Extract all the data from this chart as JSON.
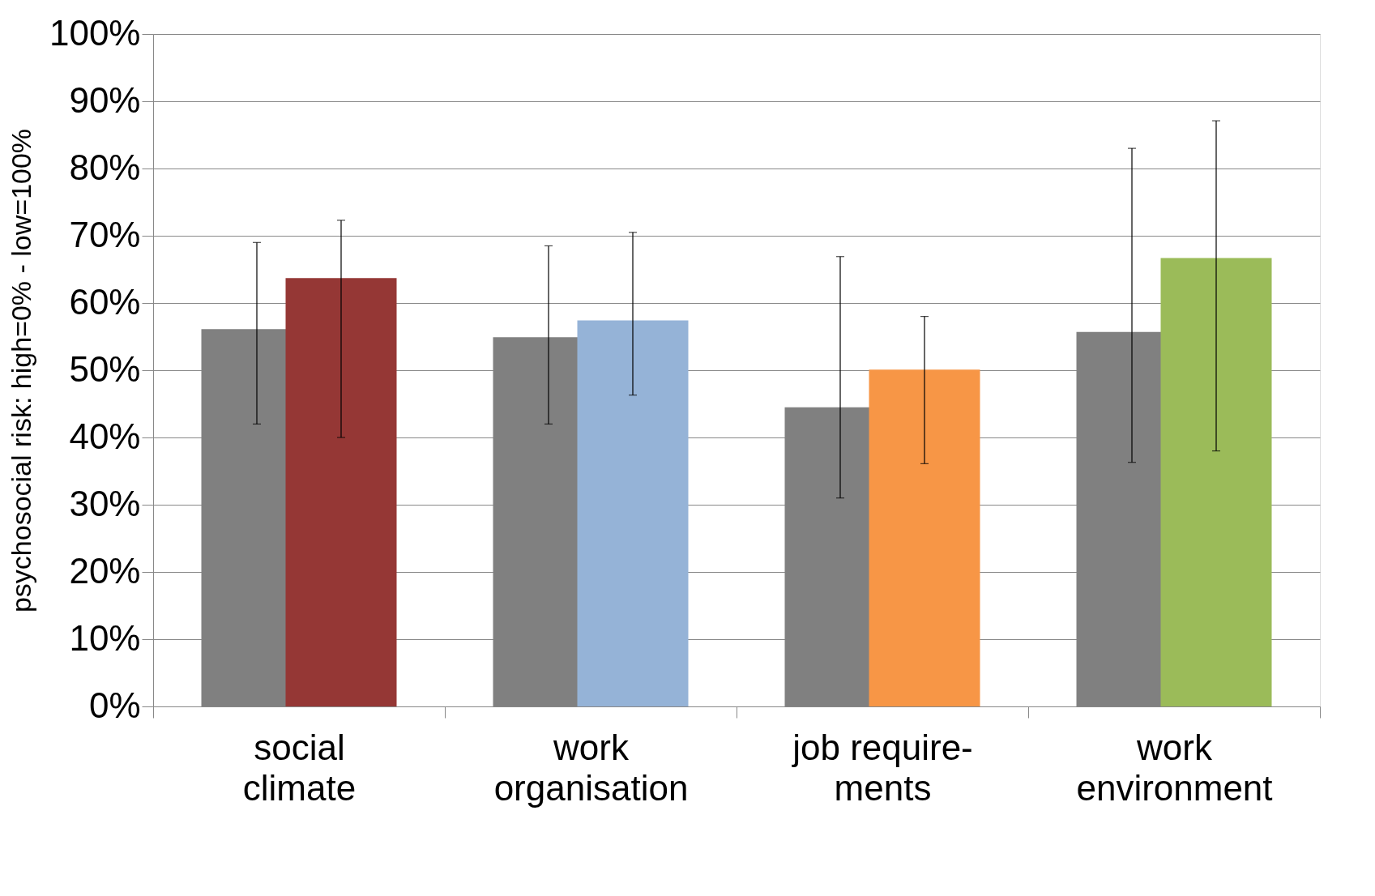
{
  "chart_data": {
    "type": "bar",
    "ylabel": "psychosocial risk: high=0% - low=100%",
    "categories": [
      "social\nclimate",
      "work\norganisation",
      "job require-\nments",
      "work\nenvironment"
    ],
    "series": [
      {
        "color": "#808080",
        "values": [
          56.1,
          54.9,
          44.5,
          55.7
        ],
        "errors": [
          [
            42.0,
            69.0
          ],
          [
            42.0,
            68.5
          ],
          [
            31.0,
            66.9
          ],
          [
            36.3,
            83.0
          ]
        ]
      },
      {
        "colors": [
          "#953735",
          "#95b3d7",
          "#f79646",
          "#9bbb59"
        ],
        "values": [
          63.7,
          57.4,
          50.1,
          66.7
        ],
        "errors": [
          [
            40.0,
            72.3
          ],
          [
            46.3,
            70.5
          ],
          [
            36.1,
            58.0
          ],
          [
            38.0,
            87.1
          ]
        ]
      }
    ],
    "ylim": [
      0,
      100
    ],
    "yticks": [
      {
        "value": 0,
        "label": "0%"
      },
      {
        "value": 10,
        "label": "10%"
      },
      {
        "value": 20,
        "label": "20%"
      },
      {
        "value": 30,
        "label": "30%"
      },
      {
        "value": 40,
        "label": "40%"
      },
      {
        "value": 50,
        "label": "50%"
      },
      {
        "value": 60,
        "label": "60%"
      },
      {
        "value": 70,
        "label": "70%"
      },
      {
        "value": 80,
        "label": "80%"
      },
      {
        "value": 90,
        "label": "90%"
      },
      {
        "value": 100,
        "label": "100%"
      }
    ],
    "grid": "y"
  }
}
